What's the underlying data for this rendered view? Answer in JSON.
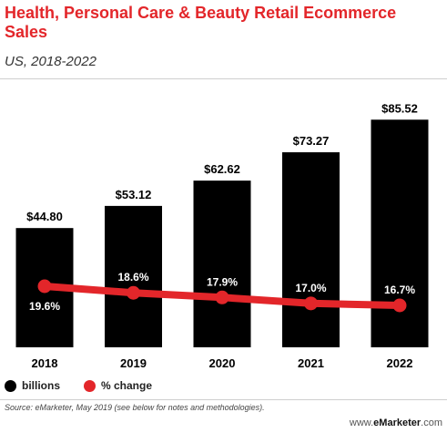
{
  "header": {
    "title": "Health, Personal Care & Beauty Retail Ecommerce Sales",
    "subtitle": "US, 2018-2022"
  },
  "legend": {
    "billions_label": "billions",
    "change_label": "% change"
  },
  "footer": {
    "source": "Source: eMarketer, May 2019 (see below for notes and methodologies).",
    "brand_prefix": "www.",
    "brand_name": "eMarketer",
    "brand_suffix": ".com"
  },
  "colors": {
    "title": "#e3262a",
    "bar": "#000000",
    "line": "#e3262a",
    "bar_text": "#ffffff",
    "axis_text": "#000000"
  },
  "chart_data": {
    "type": "bar",
    "categories": [
      "2018",
      "2019",
      "2020",
      "2021",
      "2022"
    ],
    "series": [
      {
        "name": "billions",
        "type": "bar",
        "values": [
          44.8,
          53.12,
          62.62,
          73.27,
          85.52
        ],
        "labels": [
          "$44.80",
          "$53.12",
          "$62.62",
          "$73.27",
          "$85.52"
        ]
      },
      {
        "name": "% change",
        "type": "line",
        "values": [
          19.6,
          18.6,
          17.9,
          17.0,
          16.7
        ],
        "labels": [
          "19.6%",
          "18.6%",
          "17.9%",
          "17.0%",
          "16.7%"
        ]
      }
    ],
    "grid": false,
    "legend_position": "bottom-left"
  }
}
